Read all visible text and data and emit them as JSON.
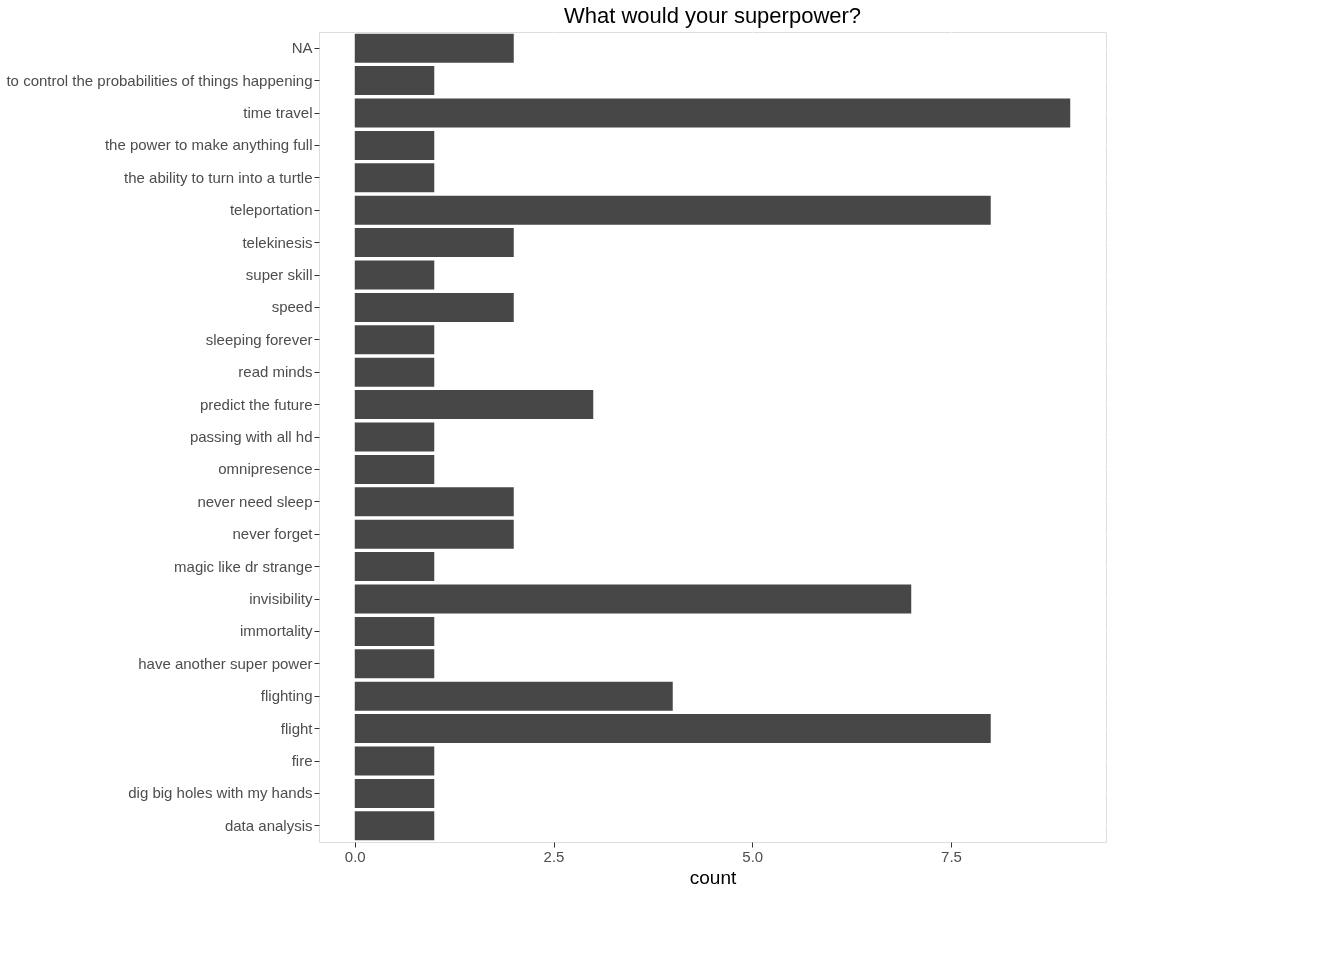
{
  "chart_data": {
    "type": "bar",
    "orientation": "horizontal",
    "title": "What would your superpower?",
    "xlabel": "count",
    "categories": [
      "NA",
      "to control the probabilities of things happening",
      "time travel",
      "the power to make anything full",
      "the ability to turn into a turtle",
      "teleportation",
      "telekinesis",
      "super skill",
      "speed",
      "sleeping forever",
      "read minds",
      "predict the future",
      "passing with all hd",
      "omnipresence",
      "never need sleep",
      "never forget",
      "magic like dr strange",
      "invisibility",
      "immortality",
      "have another super power",
      "flighting",
      "flight",
      "fire",
      "dig big holes with my hands",
      "data analysis"
    ],
    "values": [
      2,
      1,
      9,
      1,
      1,
      8,
      2,
      1,
      2,
      1,
      1,
      3,
      1,
      1,
      2,
      2,
      1,
      7,
      1,
      1,
      4,
      8,
      1,
      1,
      1
    ],
    "color": "#474747",
    "xlim": [
      -0.45,
      9.45
    ],
    "xticks": [
      {
        "value": 0,
        "label": "0.0"
      },
      {
        "value": 2.5,
        "label": "2.5"
      },
      {
        "value": 5,
        "label": "5.0"
      },
      {
        "value": 7.5,
        "label": "7.5"
      }
    ],
    "grid": true
  }
}
